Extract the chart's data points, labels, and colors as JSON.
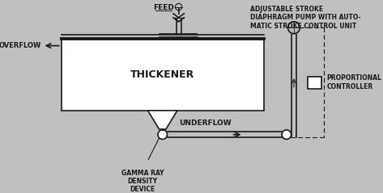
{
  "bg_color": "#c0c0c0",
  "line_color": "#1a1a1a",
  "thickener_label": "THICKENER",
  "feed_label": "FEED",
  "overflow_label": "OVERFLOW",
  "underflow_label": "UNDERFLOW",
  "gamma_label": "GAMMA RAY\nDENSITY\nDEVICE",
  "pump_label": "ADJUSTABLE STROKE\nDIAPHRAGM PUMP WITH AUTO-\nMATIC STROKE CONTROL UNIT",
  "controller_label": "PROPORTIONAL\nCONTROLLER"
}
